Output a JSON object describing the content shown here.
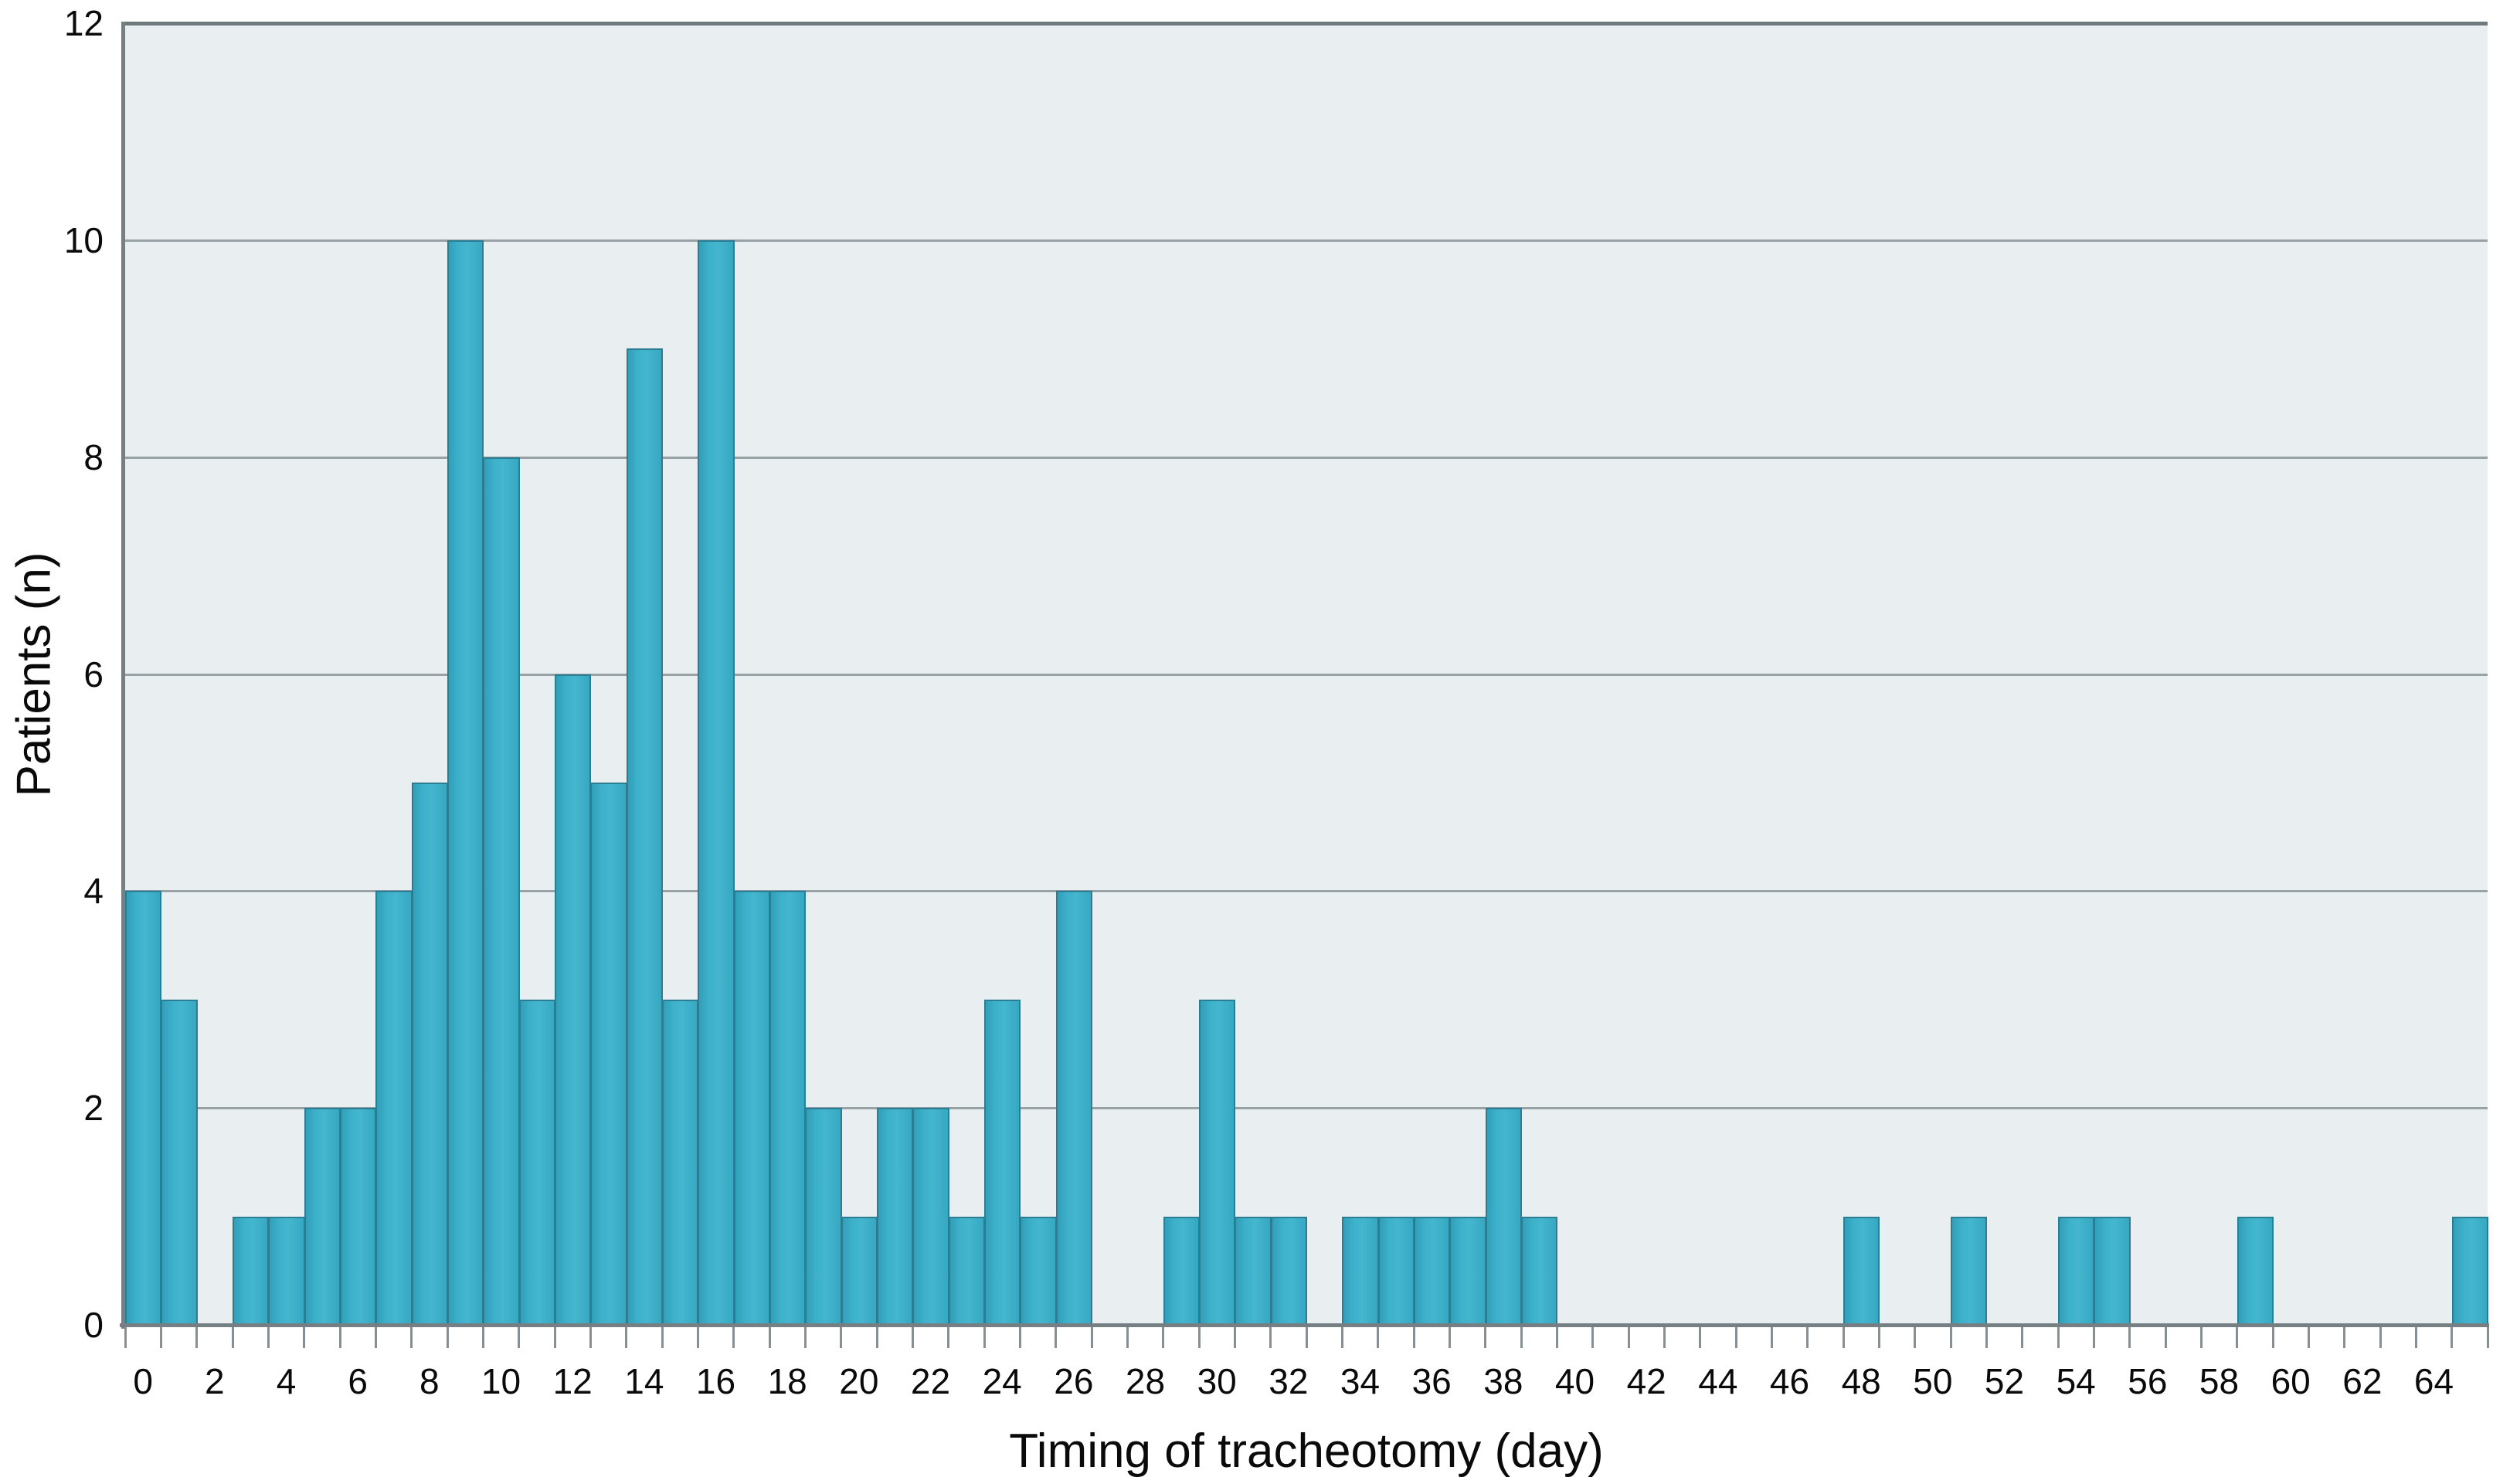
{
  "figure": {
    "kind": "histogram-figure"
  },
  "chart_data": {
    "type": "bar",
    "title": "",
    "xlabel": "Timing of tracheotomy (day)",
    "ylabel": "Patients (n)",
    "categories": [
      0,
      1,
      2,
      3,
      4,
      5,
      6,
      7,
      8,
      9,
      10,
      11,
      12,
      13,
      14,
      15,
      16,
      17,
      18,
      19,
      20,
      21,
      22,
      23,
      24,
      25,
      26,
      27,
      28,
      29,
      30,
      31,
      32,
      33,
      34,
      35,
      36,
      37,
      38,
      39,
      40,
      41,
      42,
      43,
      44,
      45,
      46,
      47,
      48,
      49,
      50,
      51,
      52,
      53,
      54,
      55,
      56,
      57,
      58,
      59,
      60,
      61,
      62,
      63,
      64,
      65
    ],
    "values": [
      4,
      3,
      0,
      1,
      1,
      2,
      2,
      4,
      5,
      10,
      8,
      3,
      6,
      5,
      9,
      3,
      10,
      4,
      4,
      2,
      1,
      2,
      2,
      1,
      3,
      1,
      4,
      0,
      0,
      1,
      3,
      1,
      1,
      0,
      1,
      1,
      1,
      1,
      2,
      1,
      0,
      0,
      0,
      0,
      0,
      0,
      0,
      0,
      1,
      0,
      0,
      1,
      0,
      0,
      1,
      1,
      0,
      0,
      0,
      1,
      0,
      0,
      0,
      0,
      0,
      1
    ],
    "x_tick_labels": [
      "0",
      "2",
      "4",
      "6",
      "8",
      "10",
      "12",
      "14",
      "16",
      "18",
      "20",
      "22",
      "24",
      "26",
      "28",
      "30",
      "32",
      "34",
      "36",
      "38",
      "40",
      "42",
      "44",
      "46",
      "48",
      "50",
      "52",
      "54",
      "56",
      "58",
      "60",
      "62",
      "64"
    ],
    "y_tick_labels": [
      "0",
      "2",
      "4",
      "6",
      "8",
      "10",
      "12"
    ],
    "ylim": [
      0,
      12
    ],
    "xlim_days": [
      0,
      66
    ],
    "bin_width_days": 1,
    "grid": "horizontal",
    "legend": "none",
    "bar_fill": "#3aadc7",
    "bar_border": "#2b7d94",
    "plot_bg": "#e9eef1",
    "grid_color": "#98a1a6",
    "axis_color": "#767f84",
    "top_border_color": "#6e787d"
  }
}
